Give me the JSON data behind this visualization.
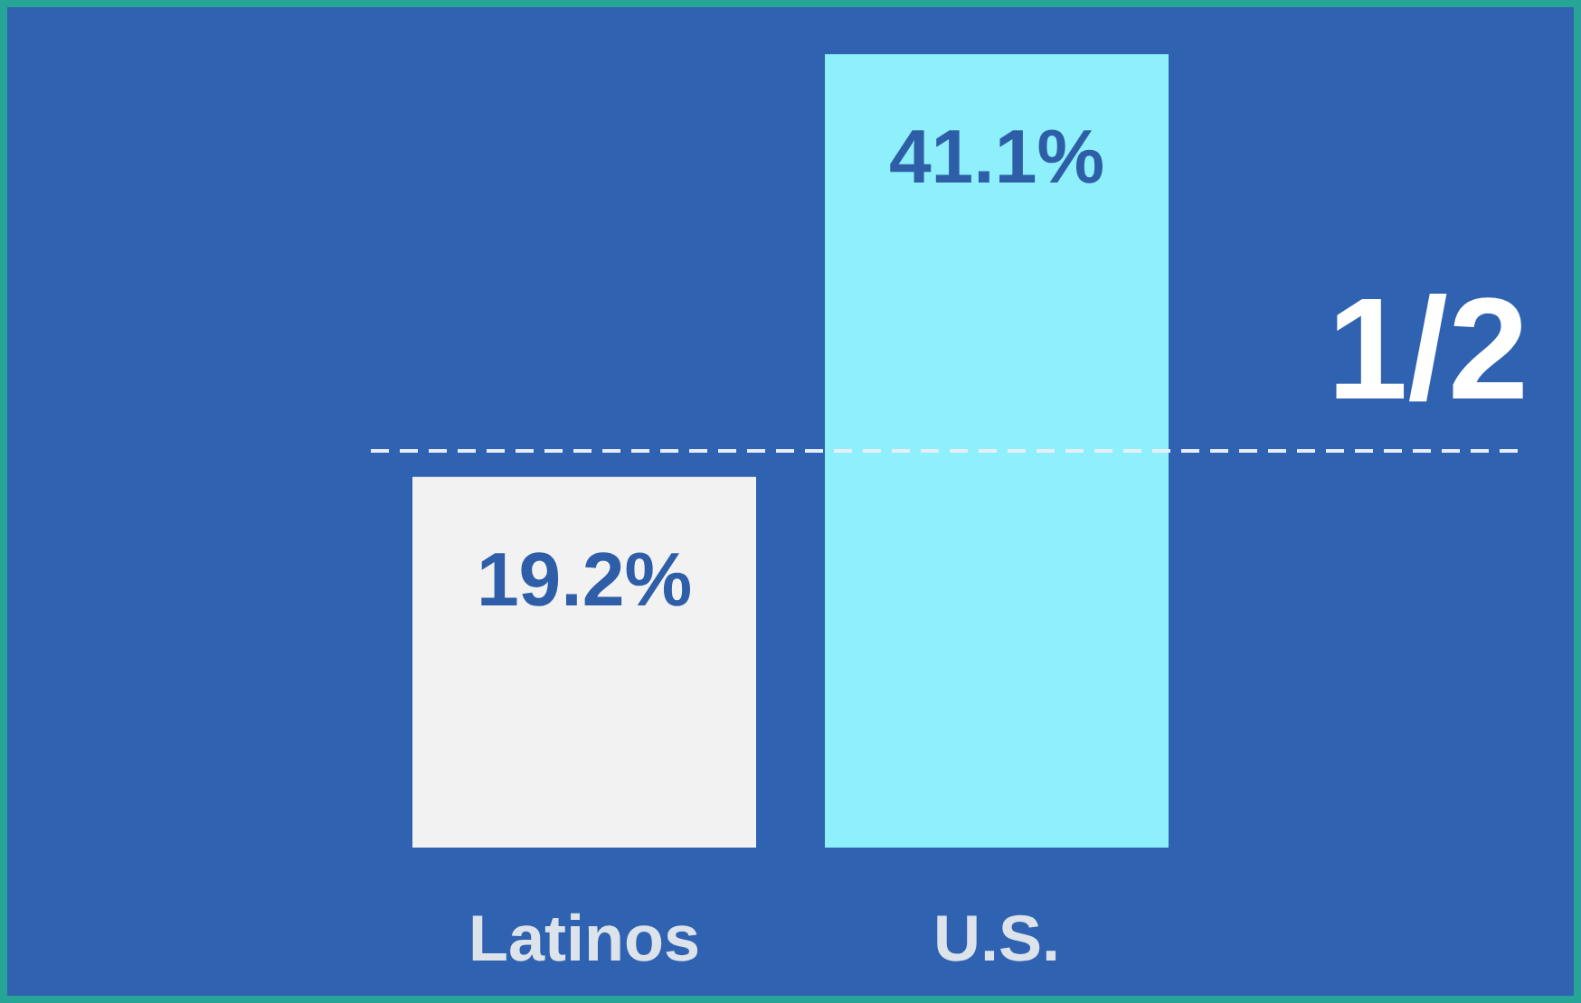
{
  "chart_data": {
    "type": "bar",
    "categories": [
      "Latinos",
      "U.S."
    ],
    "values": [
      19.2,
      41.1
    ],
    "colors": [
      "#f2f2f2",
      "#8ef0fb"
    ],
    "value_labels": [
      "19.2%",
      "41.1%"
    ],
    "ref_lines": [
      {
        "axis": "y",
        "value": 20.55,
        "color": "#e8eef8",
        "line_style": "dashed"
      }
    ],
    "annotations": [
      {
        "text": "1/2",
        "y": 20.55
      }
    ]
  }
}
